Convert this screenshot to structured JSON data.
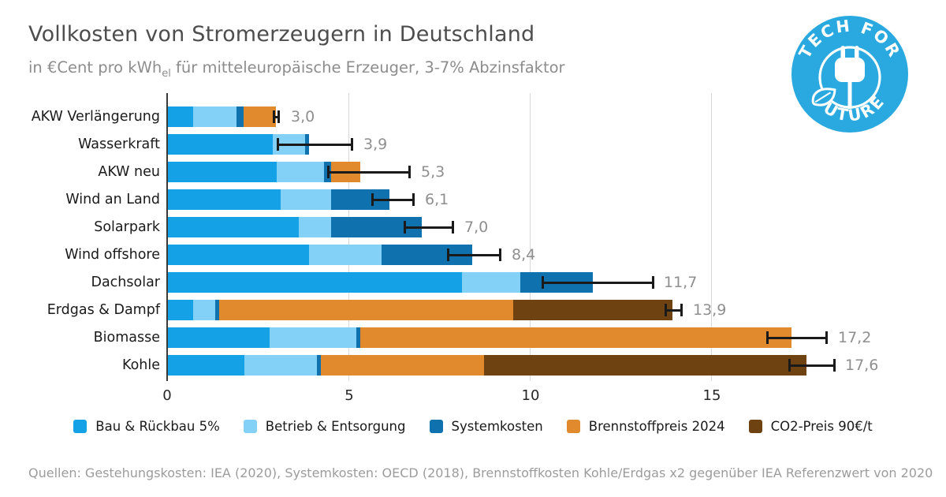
{
  "title": "Vollkosten von Stromerzeugern in Deutschland",
  "subtitle": {
    "pre": "in €Cent pro kWh",
    "sub": "el",
    "post": " für mitteleuropäische Erzeuger, 3-7% Abzinsfaktor"
  },
  "logo": {
    "top_text": "TECH FOR",
    "bottom_text": "FUTURE",
    "color": "#29A9E0"
  },
  "chart_data": {
    "type": "bar",
    "orientation": "horizontal-stacked",
    "value_unit": "€Cent pro kWh_el",
    "categories": [
      "AKW Verlängerung",
      "Wasserkraft",
      "AKW neu",
      "Wind an Land",
      "Solarpark",
      "Wind offshore",
      "Dachsolar",
      "Erdgas & Dampf",
      "Biomasse",
      "Kohle"
    ],
    "series": [
      {
        "name": "Bau & Rückbau 5%",
        "color": "#14A1E6",
        "values": [
          0.7,
          2.9,
          3.0,
          3.1,
          3.6,
          3.9,
          8.1,
          0.7,
          2.8,
          2.1
        ]
      },
      {
        "name": "Betrieb & Entsorgung",
        "color": "#83D1F6",
        "values": [
          1.2,
          0.9,
          1.3,
          1.4,
          0.9,
          2.0,
          1.6,
          0.6,
          2.4,
          2.0
        ]
      },
      {
        "name": "Systemkosten",
        "color": "#0F72AE",
        "values": [
          0.2,
          0.1,
          0.2,
          1.6,
          2.5,
          2.5,
          2.0,
          0.1,
          0.1,
          0.1
        ]
      },
      {
        "name": "Brennstoffpreis 2024",
        "color": "#E18A2D",
        "values": [
          0.9,
          0,
          0.8,
          0,
          0,
          0,
          0,
          8.1,
          11.9,
          4.5
        ]
      },
      {
        "name": "CO2-Preis 90€/t",
        "color": "#6F4212",
        "values": [
          0,
          0,
          0,
          0,
          0,
          0,
          0,
          4.4,
          0,
          8.9
        ]
      }
    ],
    "totals": [
      3.0,
      3.9,
      5.3,
      6.1,
      7.0,
      8.4,
      11.7,
      13.9,
      17.2,
      17.6
    ],
    "total_labels": [
      "3,0",
      "3,9",
      "5,3",
      "6,1",
      "7,0",
      "8,4",
      "11,7",
      "13,9",
      "17,2",
      "17,6"
    ],
    "error_bars": [
      [
        2.9,
        3.1
      ],
      [
        3.0,
        5.1
      ],
      [
        4.4,
        6.7
      ],
      [
        5.6,
        6.8
      ],
      [
        6.5,
        7.9
      ],
      [
        7.7,
        9.2
      ],
      [
        10.3,
        13.4
      ],
      [
        13.7,
        14.2
      ],
      [
        16.5,
        18.2
      ],
      [
        17.1,
        18.4
      ]
    ],
    "x_ticks": [
      "0",
      "5",
      "10",
      "15"
    ],
    "x_tick_values": [
      0,
      5,
      10,
      15
    ],
    "xlim": [
      0,
      18.6
    ],
    "grid": "vertical-light",
    "legend_position": "bottom"
  },
  "footer": "Quellen: Gestehungskosten: IEA (2020), Systemkosten: OECD (2018), Brennstoffkosten Kohle/Erdgas x2 gegenüber IEA Referenzwert von 2020"
}
